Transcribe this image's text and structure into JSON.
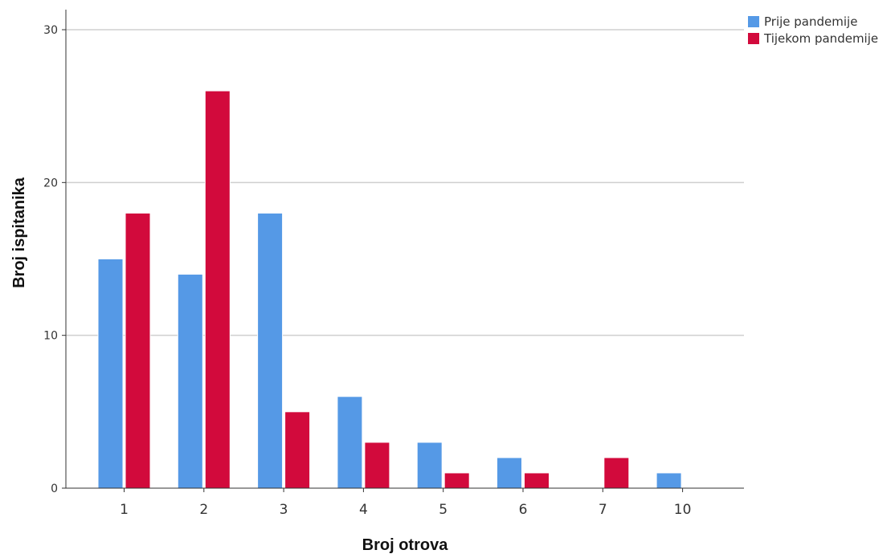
{
  "chart_data": {
    "type": "bar",
    "categories": [
      "1",
      "2",
      "3",
      "4",
      "5",
      "6",
      "7",
      "10"
    ],
    "series": [
      {
        "name": "Prije pandemije",
        "color": "#5599e6",
        "values": [
          15,
          14,
          18,
          6,
          3,
          2,
          0,
          1
        ]
      },
      {
        "name": "Tijekom pandemije",
        "color": "#d20a3c",
        "values": [
          18,
          26,
          5,
          3,
          1,
          1,
          2,
          0
        ]
      }
    ],
    "title": "",
    "xlabel": "Broj otrova",
    "ylabel": "Broj ispitanika",
    "ylim": [
      0,
      30
    ],
    "yticks": [
      0,
      10,
      20,
      30
    ],
    "grid": true,
    "legend_position": "top-right"
  }
}
